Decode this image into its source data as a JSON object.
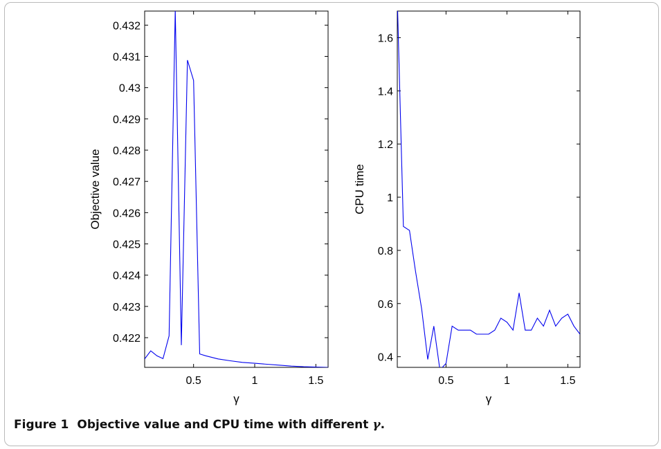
{
  "caption": {
    "label": "Figure 1",
    "text": "Objective value and CPU time with different ",
    "symbol": "γ",
    "end": "."
  },
  "colors": {
    "series": "#0000ee",
    "axis": "#000000",
    "frame": "#b9b9b9"
  },
  "chart_data": [
    {
      "type": "line",
      "xlabel": "γ",
      "ylabel": "Objective value",
      "xlim": [
        0.1,
        1.6
      ],
      "ylim": [
        0.42105,
        0.43245
      ],
      "xticks": [
        0.5,
        1,
        1.5
      ],
      "xtick_labels": [
        "0.5",
        "1",
        "1.5"
      ],
      "yticks": [
        0.422,
        0.423,
        0.424,
        0.425,
        0.426,
        0.427,
        0.428,
        0.429,
        0.43,
        0.431,
        0.432
      ],
      "ytick_labels": [
        "0.422",
        "0.423",
        "0.424",
        "0.425",
        "0.426",
        "0.427",
        "0.428",
        "0.429",
        "0.43",
        "0.431",
        "0.432"
      ],
      "grid": false,
      "series": [
        {
          "x": [
            0.1,
            0.15,
            0.2,
            0.25,
            0.3,
            0.35,
            0.4,
            0.45,
            0.5,
            0.55,
            0.6,
            0.7,
            0.8,
            0.9,
            1.0,
            1.1,
            1.2,
            1.3,
            1.4,
            1.5,
            1.6
          ],
          "y": [
            0.42132,
            0.42158,
            0.42142,
            0.42133,
            0.42206,
            0.4325,
            0.42176,
            0.43088,
            0.43023,
            0.42148,
            0.42142,
            0.42132,
            0.42126,
            0.42121,
            0.42118,
            0.42115,
            0.42112,
            0.42109,
            0.42107,
            0.42106,
            0.42105
          ]
        }
      ]
    },
    {
      "type": "line",
      "xlabel": "γ",
      "ylabel": "CPU time",
      "xlim": [
        0.1,
        1.6
      ],
      "ylim": [
        0.36,
        1.7
      ],
      "xticks": [
        0.5,
        1,
        1.5
      ],
      "xtick_labels": [
        "0.5",
        "1",
        "1.5"
      ],
      "yticks": [
        0.4,
        0.6,
        0.8,
        1.0,
        1.2,
        1.4,
        1.6
      ],
      "ytick_labels": [
        "0.4",
        "0.6",
        "0.8",
        "1",
        "1.2",
        "1.4",
        "1.6"
      ],
      "grid": false,
      "series": [
        {
          "x": [
            0.1,
            0.15,
            0.2,
            0.25,
            0.3,
            0.35,
            0.4,
            0.45,
            0.5,
            0.55,
            0.6,
            0.65,
            0.7,
            0.75,
            0.8,
            0.85,
            0.9,
            0.95,
            1.0,
            1.05,
            1.1,
            1.15,
            1.2,
            1.25,
            1.3,
            1.35,
            1.4,
            1.45,
            1.5,
            1.55,
            1.6
          ],
          "y": [
            1.75,
            0.89,
            0.875,
            0.72,
            0.58,
            0.39,
            0.515,
            0.35,
            0.375,
            0.515,
            0.5,
            0.5,
            0.5,
            0.485,
            0.485,
            0.485,
            0.5,
            0.545,
            0.53,
            0.5,
            0.64,
            0.5,
            0.5,
            0.545,
            0.515,
            0.575,
            0.515,
            0.545,
            0.56,
            0.515,
            0.485
          ]
        }
      ]
    }
  ]
}
